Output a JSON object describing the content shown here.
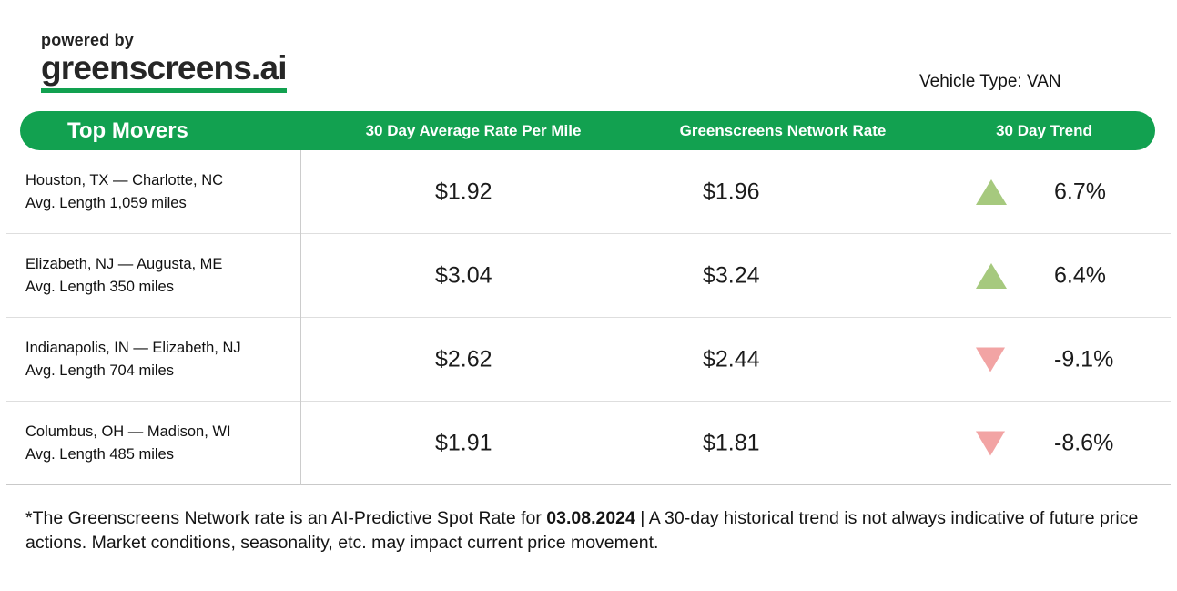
{
  "brand": {
    "powered_by": "powered by",
    "name": "greenscreens.ai",
    "accent_green": "#12a150"
  },
  "meta": {
    "vehicle_type": "Vehicle Type: VAN"
  },
  "table": {
    "title": "Top Movers",
    "columns": {
      "avg_rate": "30 Day Average Rate Per Mile",
      "network_rate": "Greenscreens Network Rate",
      "trend": "30 Day Trend"
    },
    "trend_up_color": "#a6c97e",
    "trend_down_color": "#f2a4a4",
    "rows": [
      {
        "lane": "Houston, TX — Charlotte, NC",
        "avg_length": "Avg. Length 1,059 miles",
        "avg_rate": "$1.92",
        "network_rate": "$1.96",
        "trend": "6.7%",
        "direction": "up"
      },
      {
        "lane": "Elizabeth, NJ — Augusta, ME",
        "avg_length": "Avg. Length 350 miles",
        "avg_rate": "$3.04",
        "network_rate": "$3.24",
        "trend": "6.4%",
        "direction": "up"
      },
      {
        "lane": "Indianapolis, IN — Elizabeth, NJ",
        "avg_length": "Avg. Length 704 miles",
        "avg_rate": "$2.62",
        "network_rate": "$2.44",
        "trend": "-9.1%",
        "direction": "down"
      },
      {
        "lane": "Columbus, OH — Madison, WI",
        "avg_length": "Avg. Length 485 miles",
        "avg_rate": "$1.91",
        "network_rate": "$1.81",
        "trend": "-8.6%",
        "direction": "down"
      }
    ]
  },
  "footer": {
    "prefix": "*The Greenscreens Network rate is an AI-Predictive Spot Rate for ",
    "date": "03.08.2024",
    "suffix": " | A 30-day historical trend is not always indicative of future price actions. Market conditions, seasonality, etc. may impact current price movement."
  }
}
